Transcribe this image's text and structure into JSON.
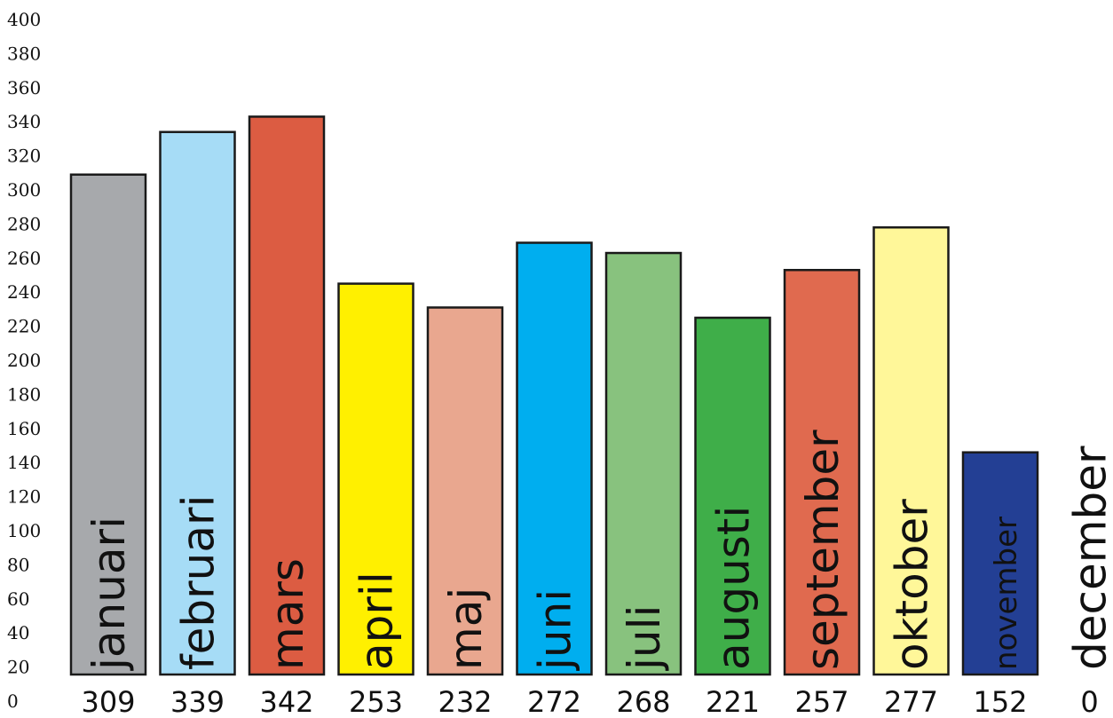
{
  "chart_data": {
    "type": "bar",
    "title": "",
    "xlabel": "",
    "ylabel": "",
    "ylim": [
      0,
      400
    ],
    "y_ticks": [
      0,
      20,
      40,
      60,
      80,
      100,
      120,
      140,
      160,
      180,
      200,
      220,
      240,
      260,
      280,
      300,
      320,
      340,
      360,
      380,
      400
    ],
    "grid": false,
    "legend": "none",
    "categories": [
      "januari",
      "februari",
      "mars",
      "april",
      "maj",
      "juni",
      "juli",
      "augusti",
      "september",
      "oktober",
      "november",
      "december"
    ],
    "value_labels": [
      "309",
      "339",
      "342",
      "253",
      "232",
      "272",
      "268",
      "221",
      "257",
      "277",
      "152",
      "0"
    ],
    "values": [
      309,
      339,
      342,
      253,
      232,
      272,
      268,
      221,
      257,
      277,
      152,
      0
    ],
    "bar_heights": [
      309,
      334,
      343,
      245,
      231,
      269,
      263,
      225,
      253,
      278,
      146,
      0
    ],
    "colors": [
      "#a7a9ac",
      "#a6dcf6",
      "#dc5c42",
      "#fff000",
      "#e9a78f",
      "#00aeef",
      "#88c27e",
      "#3fae49",
      "#e06a4f",
      "#fff799",
      "#233f94",
      "#ffffff"
    ]
  }
}
